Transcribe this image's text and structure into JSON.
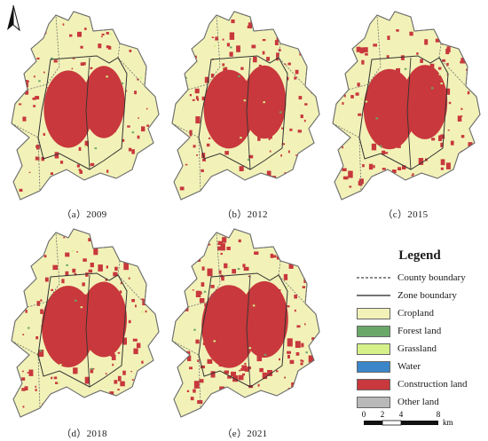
{
  "map": {
    "north_label": "N",
    "panels": [
      {
        "caption": "（a）2009",
        "density": 0.45
      },
      {
        "caption": "（b）2012",
        "density": 0.55
      },
      {
        "caption": "（c）2015",
        "density": 0.65
      },
      {
        "caption": "（d）2018",
        "density": 0.75
      },
      {
        "caption": "（e）2021",
        "density": 0.85
      }
    ],
    "colors": {
      "cropland": "#f2f2b8",
      "forest": "#6aa86a",
      "grassland": "#d6f08a",
      "water": "#3b86c9",
      "construction": "#c8383c",
      "other": "#b9b9b9",
      "outline": "#6f6f6f",
      "zone": "#333333"
    }
  },
  "legend": {
    "title": "Legend",
    "items": [
      {
        "label": "County boundary",
        "kind": "line-dashed"
      },
      {
        "label": "Zone boundary",
        "kind": "line"
      },
      {
        "label": "Cropland",
        "kind": "fill",
        "color": "#f2f2b8"
      },
      {
        "label": "Forest land",
        "kind": "fill",
        "color": "#6aa86a"
      },
      {
        "label": "Grassland",
        "kind": "fill",
        "color": "#d6f08a"
      },
      {
        "label": "Water",
        "kind": "fill",
        "color": "#3b86c9"
      },
      {
        "label": "Construction land",
        "kind": "fill",
        "color": "#c8383c"
      },
      {
        "label": "Other land",
        "kind": "fill",
        "color": "#b9b9b9"
      }
    ]
  },
  "scale": {
    "ticks": [
      "0",
      "2",
      "4",
      "8"
    ],
    "unit": "km"
  }
}
